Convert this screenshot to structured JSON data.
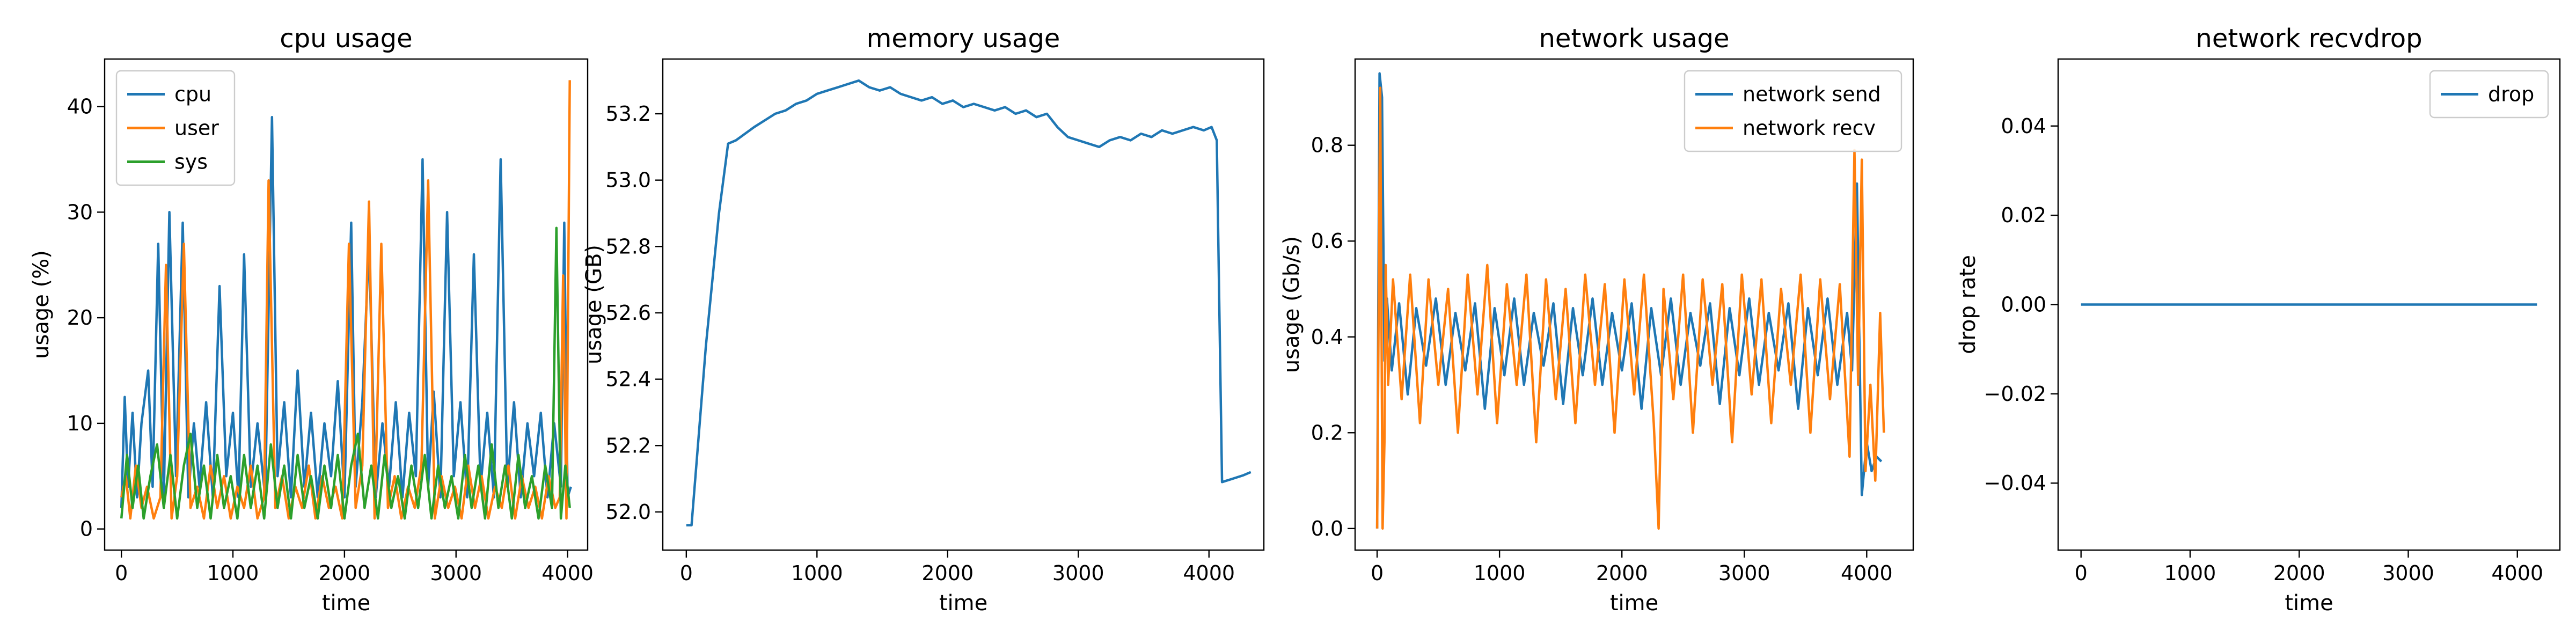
{
  "chart_data": [
    {
      "type": "line",
      "title": "cpu usage",
      "xlabel": "time",
      "ylabel": "usage (%)",
      "xlim": [
        -150,
        4180
      ],
      "ylim": [
        -2,
        44.5
      ],
      "xticks": [
        0,
        1000,
        2000,
        3000,
        4000
      ],
      "xtick_labels": [
        "0",
        "1000",
        "2000",
        "3000",
        "4000"
      ],
      "yticks": [
        0,
        10,
        20,
        30,
        40
      ],
      "ytick_labels": [
        "0",
        "10",
        "20",
        "30",
        "40"
      ],
      "grid": false,
      "legend": "upper left",
      "series": [
        {
          "name": "cpu",
          "color": "#1f77b4",
          "x": [
            0,
            30,
            60,
            100,
            140,
            180,
            240,
            280,
            330,
            380,
            430,
            490,
            550,
            600,
            650,
            700,
            760,
            820,
            880,
            940,
            1000,
            1050,
            1100,
            1160,
            1220,
            1290,
            1350,
            1400,
            1460,
            1520,
            1580,
            1640,
            1700,
            1760,
            1820,
            1880,
            1940,
            2000,
            2060,
            2100,
            2160,
            2220,
            2280,
            2340,
            2400,
            2460,
            2520,
            2580,
            2640,
            2700,
            2750,
            2800,
            2860,
            2920,
            2980,
            3040,
            3100,
            3160,
            3220,
            3280,
            3340,
            3400,
            3460,
            3520,
            3580,
            3640,
            3700,
            3760,
            3820,
            3880,
            3940,
            3970,
            4000,
            4030
          ],
          "values": [
            2,
            12.5,
            4,
            11,
            3,
            10,
            15,
            4,
            27,
            3,
            30,
            5,
            29,
            3,
            10,
            4,
            12,
            3,
            23,
            5,
            11,
            3,
            26,
            4,
            10,
            3,
            39,
            5,
            12,
            3,
            15,
            4,
            11,
            3,
            10,
            5,
            14,
            3,
            29,
            4,
            12,
            27,
            3,
            10,
            4,
            12,
            3,
            11,
            5,
            35,
            4,
            13,
            3,
            30,
            5,
            12,
            3,
            26,
            4,
            11,
            3,
            35,
            4,
            12,
            3,
            10,
            5,
            11,
            3,
            10,
            4,
            29,
            3,
            4
          ]
        },
        {
          "name": "user",
          "color": "#ff7f0e",
          "x": [
            0,
            40,
            80,
            130,
            180,
            230,
            290,
            350,
            400,
            450,
            500,
            560,
            620,
            680,
            740,
            800,
            860,
            920,
            980,
            1040,
            1100,
            1160,
            1220,
            1280,
            1320,
            1380,
            1440,
            1500,
            1560,
            1620,
            1680,
            1740,
            1800,
            1860,
            1920,
            1980,
            2040,
            2100,
            2160,
            2220,
            2270,
            2330,
            2390,
            2450,
            2510,
            2570,
            2630,
            2690,
            2750,
            2810,
            2870,
            2930,
            2990,
            3050,
            3110,
            3170,
            3230,
            3290,
            3350,
            3410,
            3470,
            3530,
            3590,
            3650,
            3710,
            3770,
            3830,
            3890,
            3930,
            3960,
            3990,
            4020
          ],
          "values": [
            3,
            5,
            1,
            6,
            2,
            4,
            1,
            3,
            25,
            1,
            5,
            27,
            2,
            4,
            1,
            6,
            2,
            5,
            1,
            4,
            2,
            6,
            1,
            3,
            33,
            2,
            5,
            1,
            4,
            2,
            6,
            1,
            5,
            2,
            4,
            1,
            27,
            2,
            6,
            31,
            1,
            27,
            2,
            5,
            1,
            4,
            2,
            6,
            33,
            1,
            5,
            2,
            4,
            1,
            6,
            2,
            5,
            1,
            4,
            2,
            6,
            1,
            5,
            2,
            4,
            1,
            5,
            2,
            3,
            24,
            1,
            42.5
          ]
        },
        {
          "name": "sys",
          "color": "#2ca02c",
          "x": [
            0,
            50,
            100,
            150,
            200,
            260,
            320,
            380,
            440,
            500,
            560,
            620,
            680,
            740,
            800,
            860,
            920,
            980,
            1040,
            1100,
            1160,
            1220,
            1280,
            1340,
            1400,
            1460,
            1520,
            1580,
            1640,
            1700,
            1760,
            1820,
            1880,
            1940,
            2000,
            2060,
            2120,
            2180,
            2240,
            2300,
            2360,
            2420,
            2480,
            2540,
            2600,
            2660,
            2720,
            2780,
            2840,
            2900,
            2960,
            3020,
            3080,
            3140,
            3200,
            3260,
            3320,
            3380,
            3440,
            3500,
            3560,
            3620,
            3680,
            3740,
            3800,
            3860,
            3900,
            3940,
            3980,
            4020
          ],
          "values": [
            1,
            7,
            2,
            6,
            1,
            5,
            8,
            2,
            7,
            1,
            6,
            9,
            2,
            6,
            1,
            7,
            2,
            5,
            1,
            7,
            2,
            6,
            1,
            8,
            2,
            6,
            1,
            7,
            2,
            5,
            1,
            6,
            2,
            7,
            1,
            6,
            9,
            2,
            6,
            1,
            7,
            2,
            5,
            1,
            6,
            2,
            7,
            1,
            6,
            2,
            5,
            1,
            7,
            2,
            6,
            1,
            8,
            2,
            6,
            1,
            7,
            2,
            5,
            1,
            6,
            2,
            28.5,
            1,
            6,
            2
          ]
        }
      ]
    },
    {
      "type": "line",
      "title": "memory usage",
      "xlabel": "time",
      "ylabel": "usage (GB)",
      "xlim": [
        -180,
        4420
      ],
      "ylim": [
        51.885,
        53.365
      ],
      "xticks": [
        0,
        1000,
        2000,
        3000,
        4000
      ],
      "xtick_labels": [
        "0",
        "1000",
        "2000",
        "3000",
        "4000"
      ],
      "yticks": [
        52.0,
        52.2,
        52.4,
        52.6,
        52.8,
        53.0,
        53.2
      ],
      "ytick_labels": [
        "52.0",
        "52.2",
        "52.4",
        "52.6",
        "52.8",
        "53.0",
        "53.2"
      ],
      "grid": false,
      "legend": "none",
      "series": [
        {
          "name": "memory",
          "color": "#1f77b4",
          "x": [
            0,
            40,
            150,
            250,
            320,
            380,
            450,
            520,
            600,
            680,
            760,
            840,
            920,
            1000,
            1080,
            1160,
            1240,
            1320,
            1400,
            1480,
            1560,
            1640,
            1720,
            1800,
            1880,
            1960,
            2040,
            2120,
            2200,
            2280,
            2360,
            2440,
            2520,
            2600,
            2680,
            2760,
            2840,
            2920,
            3000,
            3080,
            3160,
            3240,
            3320,
            3400,
            3480,
            3560,
            3640,
            3720,
            3800,
            3880,
            3960,
            4020,
            4060,
            4080,
            4100,
            4180,
            4260,
            4320
          ],
          "values": [
            51.96,
            51.96,
            52.5,
            52.9,
            53.11,
            53.12,
            53.14,
            53.16,
            53.18,
            53.2,
            53.21,
            53.23,
            53.24,
            53.26,
            53.27,
            53.28,
            53.29,
            53.3,
            53.28,
            53.27,
            53.28,
            53.26,
            53.25,
            53.24,
            53.25,
            53.23,
            53.24,
            53.22,
            53.23,
            53.22,
            53.21,
            53.22,
            53.2,
            53.21,
            53.19,
            53.2,
            53.16,
            53.13,
            53.12,
            53.11,
            53.1,
            53.12,
            53.13,
            53.12,
            53.14,
            53.13,
            53.15,
            53.14,
            53.15,
            53.16,
            53.15,
            53.16,
            53.12,
            52.6,
            52.09,
            52.1,
            52.11,
            52.12
          ]
        }
      ]
    },
    {
      "type": "line",
      "title": "network usage",
      "xlabel": "time",
      "ylabel": "usage (Gb/s)",
      "xlim": [
        -180,
        4380
      ],
      "ylim": [
        -0.045,
        0.98
      ],
      "xticks": [
        0,
        1000,
        2000,
        3000,
        4000
      ],
      "xtick_labels": [
        "0",
        "1000",
        "2000",
        "3000",
        "4000"
      ],
      "yticks": [
        0.0,
        0.2,
        0.4,
        0.6,
        0.8
      ],
      "ytick_labels": [
        "0.0",
        "0.2",
        "0.4",
        "0.6",
        "0.8"
      ],
      "grid": false,
      "legend": "upper right",
      "series": [
        {
          "name": "network send",
          "color": "#1f77b4",
          "x": [
            0,
            20,
            40,
            60,
            80,
            120,
            180,
            250,
            320,
            400,
            480,
            560,
            640,
            720,
            800,
            880,
            960,
            1040,
            1120,
            1200,
            1280,
            1360,
            1440,
            1520,
            1600,
            1680,
            1760,
            1840,
            1920,
            2000,
            2080,
            2160,
            2240,
            2320,
            2400,
            2480,
            2560,
            2640,
            2720,
            2800,
            2880,
            2960,
            3040,
            3120,
            3200,
            3280,
            3360,
            3440,
            3520,
            3600,
            3680,
            3760,
            3840,
            3880,
            3920,
            3960,
            4000,
            4040,
            4080,
            4120
          ],
          "values": [
            0.0,
            0.95,
            0.9,
            0.35,
            0.48,
            0.33,
            0.47,
            0.28,
            0.46,
            0.34,
            0.48,
            0.3,
            0.45,
            0.33,
            0.47,
            0.25,
            0.46,
            0.32,
            0.48,
            0.3,
            0.45,
            0.34,
            0.47,
            0.26,
            0.46,
            0.32,
            0.48,
            0.3,
            0.45,
            0.33,
            0.47,
            0.25,
            0.46,
            0.32,
            0.48,
            0.3,
            0.45,
            0.34,
            0.47,
            0.26,
            0.46,
            0.32,
            0.48,
            0.3,
            0.45,
            0.33,
            0.47,
            0.25,
            0.46,
            0.32,
            0.48,
            0.3,
            0.45,
            0.33,
            0.72,
            0.07,
            0.18,
            0.12,
            0.15,
            0.14
          ]
        },
        {
          "name": "network recv",
          "color": "#ff7f0e",
          "x": [
            0,
            25,
            45,
            60,
            70,
            90,
            130,
            200,
            270,
            350,
            420,
            500,
            580,
            660,
            740,
            820,
            900,
            980,
            1060,
            1140,
            1220,
            1300,
            1380,
            1460,
            1540,
            1620,
            1700,
            1780,
            1860,
            1940,
            2020,
            2100,
            2180,
            2260,
            2300,
            2340,
            2420,
            2500,
            2580,
            2660,
            2740,
            2820,
            2900,
            2980,
            3060,
            3140,
            3220,
            3300,
            3380,
            3460,
            3540,
            3620,
            3700,
            3780,
            3860,
            3900,
            3930,
            3960,
            3990,
            4030,
            4070,
            4110,
            4140
          ],
          "values": [
            0.0,
            0.92,
            0.0,
            0.18,
            0.55,
            0.3,
            0.52,
            0.27,
            0.53,
            0.22,
            0.52,
            0.3,
            0.5,
            0.2,
            0.53,
            0.28,
            0.55,
            0.22,
            0.51,
            0.3,
            0.53,
            0.18,
            0.52,
            0.27,
            0.5,
            0.22,
            0.53,
            0.3,
            0.51,
            0.2,
            0.52,
            0.28,
            0.53,
            0.22,
            0.0,
            0.5,
            0.27,
            0.53,
            0.2,
            0.52,
            0.3,
            0.51,
            0.18,
            0.53,
            0.28,
            0.52,
            0.22,
            0.5,
            0.3,
            0.53,
            0.2,
            0.52,
            0.27,
            0.51,
            0.15,
            0.79,
            0.3,
            0.77,
            0.12,
            0.3,
            0.1,
            0.45,
            0.2
          ]
        }
      ]
    },
    {
      "type": "line",
      "title": "network recvdrop",
      "xlabel": "time",
      "ylabel": "drop rate",
      "xlim": [
        -210,
        4390
      ],
      "ylim": [
        -0.055,
        0.055
      ],
      "xticks": [
        0,
        1000,
        2000,
        3000,
        4000
      ],
      "xtick_labels": [
        "0",
        "1000",
        "2000",
        "3000",
        "4000"
      ],
      "yticks": [
        -0.04,
        -0.02,
        0.0,
        0.02,
        0.04
      ],
      "ytick_labels": [
        "−0.04",
        "−0.02",
        "0.00",
        "0.02",
        "0.04"
      ],
      "grid": false,
      "legend": "upper right",
      "series": [
        {
          "name": "drop",
          "color": "#1f77b4",
          "x": [
            0,
            4180
          ],
          "values": [
            0.0,
            0.0
          ]
        }
      ]
    }
  ]
}
